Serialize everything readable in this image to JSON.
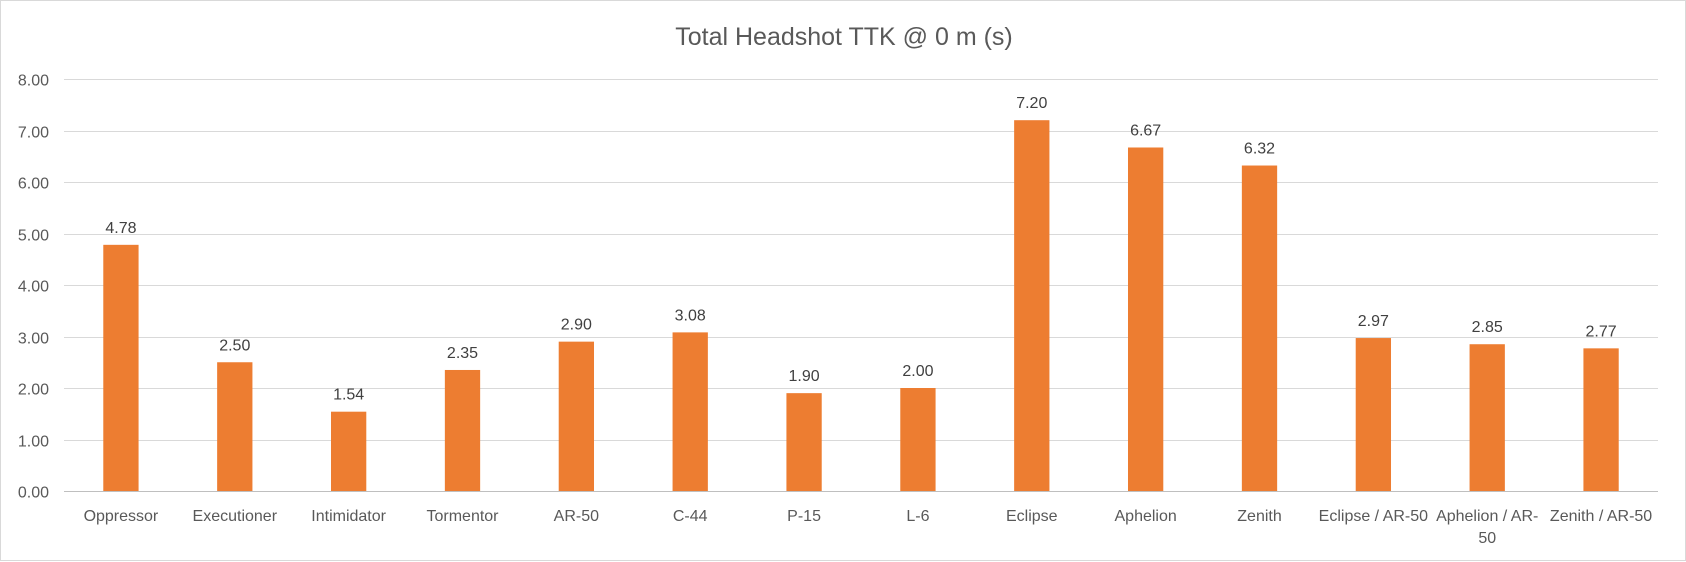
{
  "chart_data": {
    "type": "bar",
    "title": "Total Headshot TTK @ 0 m (s)",
    "xlabel": "",
    "ylabel": "",
    "ylim": [
      0,
      8
    ],
    "ytick_step": 1,
    "ytick_labels": [
      "0.00",
      "1.00",
      "2.00",
      "3.00",
      "4.00",
      "5.00",
      "6.00",
      "7.00",
      "8.00"
    ],
    "grid": true,
    "legend": "none",
    "bar_color": "#ED7D31",
    "categories": [
      [
        "Oppressor"
      ],
      [
        "Executioner"
      ],
      [
        "Intimidator"
      ],
      [
        "Tormentor"
      ],
      [
        "AR-50"
      ],
      [
        "C-44"
      ],
      [
        "P-15"
      ],
      [
        "L-6"
      ],
      [
        "Eclipse"
      ],
      [
        "Aphelion"
      ],
      [
        "Zenith"
      ],
      [
        "Eclipse / AR-50"
      ],
      [
        "Aphelion / AR-",
        "50"
      ],
      [
        "Zenith / AR-50"
      ]
    ],
    "values": [
      4.78,
      2.5,
      1.54,
      2.35,
      2.9,
      3.08,
      1.9,
      2.0,
      7.2,
      6.67,
      6.32,
      2.97,
      2.85,
      2.77
    ],
    "data_labels": [
      "4.78",
      "2.50",
      "1.54",
      "2.35",
      "2.90",
      "3.08",
      "1.90",
      "2.00",
      "7.20",
      "6.67",
      "6.32",
      "2.97",
      "2.85",
      "2.77"
    ]
  }
}
